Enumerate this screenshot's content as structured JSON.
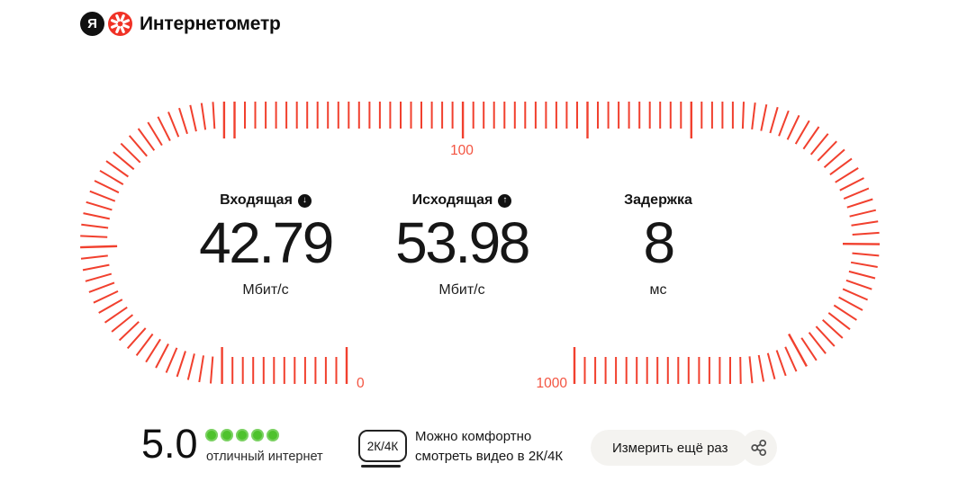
{
  "header": {
    "ya_letter": "Я",
    "brand": "Интернетометр"
  },
  "gauge": {
    "tick_color": "#f1402e",
    "label_color": "#f35441",
    "labels": {
      "start": "0",
      "middle": "100",
      "end": "1000"
    }
  },
  "stats": [
    {
      "label": "Входящая",
      "icon": "download-arrow",
      "icon_glyph": "↓",
      "value": "42.79",
      "unit": "Мбит/с"
    },
    {
      "label": "Исходящая",
      "icon": "upload-arrow",
      "icon_glyph": "↑",
      "value": "53.98",
      "unit": "Мбит/с"
    },
    {
      "label": "Задержка",
      "icon": "",
      "icon_glyph": "",
      "value": "8",
      "unit": "мс"
    }
  ],
  "summary": {
    "score": "5.0",
    "score_dots": 5,
    "dot_color": "#4ec22d",
    "verdict": "отличный интернет",
    "badge": "2К/4К",
    "quality_line1": "Можно комфортно",
    "quality_line2": "смотреть видео в 2К/4К",
    "retry_label": "Измерить ещё раз"
  },
  "icons": {
    "share": "share-nodes",
    "speedometer": "red-fan-dial",
    "yandex": "black-circle-ya"
  }
}
